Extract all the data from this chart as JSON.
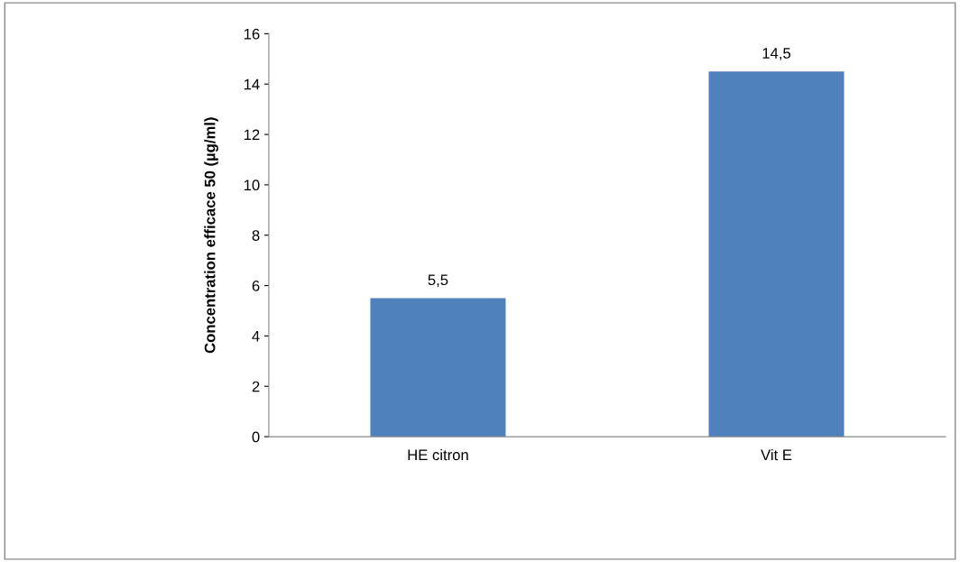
{
  "chart_data": {
    "type": "bar",
    "ylabel": "Concentration efficace 50 (µg/ml)",
    "categories": [
      "HE citron",
      "Vit E"
    ],
    "values": [
      5.5,
      14.5
    ],
    "color": "#4f81bd",
    "value_labels": [
      "5,5",
      "14,5"
    ],
    "ylim": [
      0,
      16
    ],
    "yticks": [
      0,
      2,
      4,
      6,
      8,
      10,
      12,
      14,
      16
    ],
    "grid": false,
    "legend": false
  }
}
